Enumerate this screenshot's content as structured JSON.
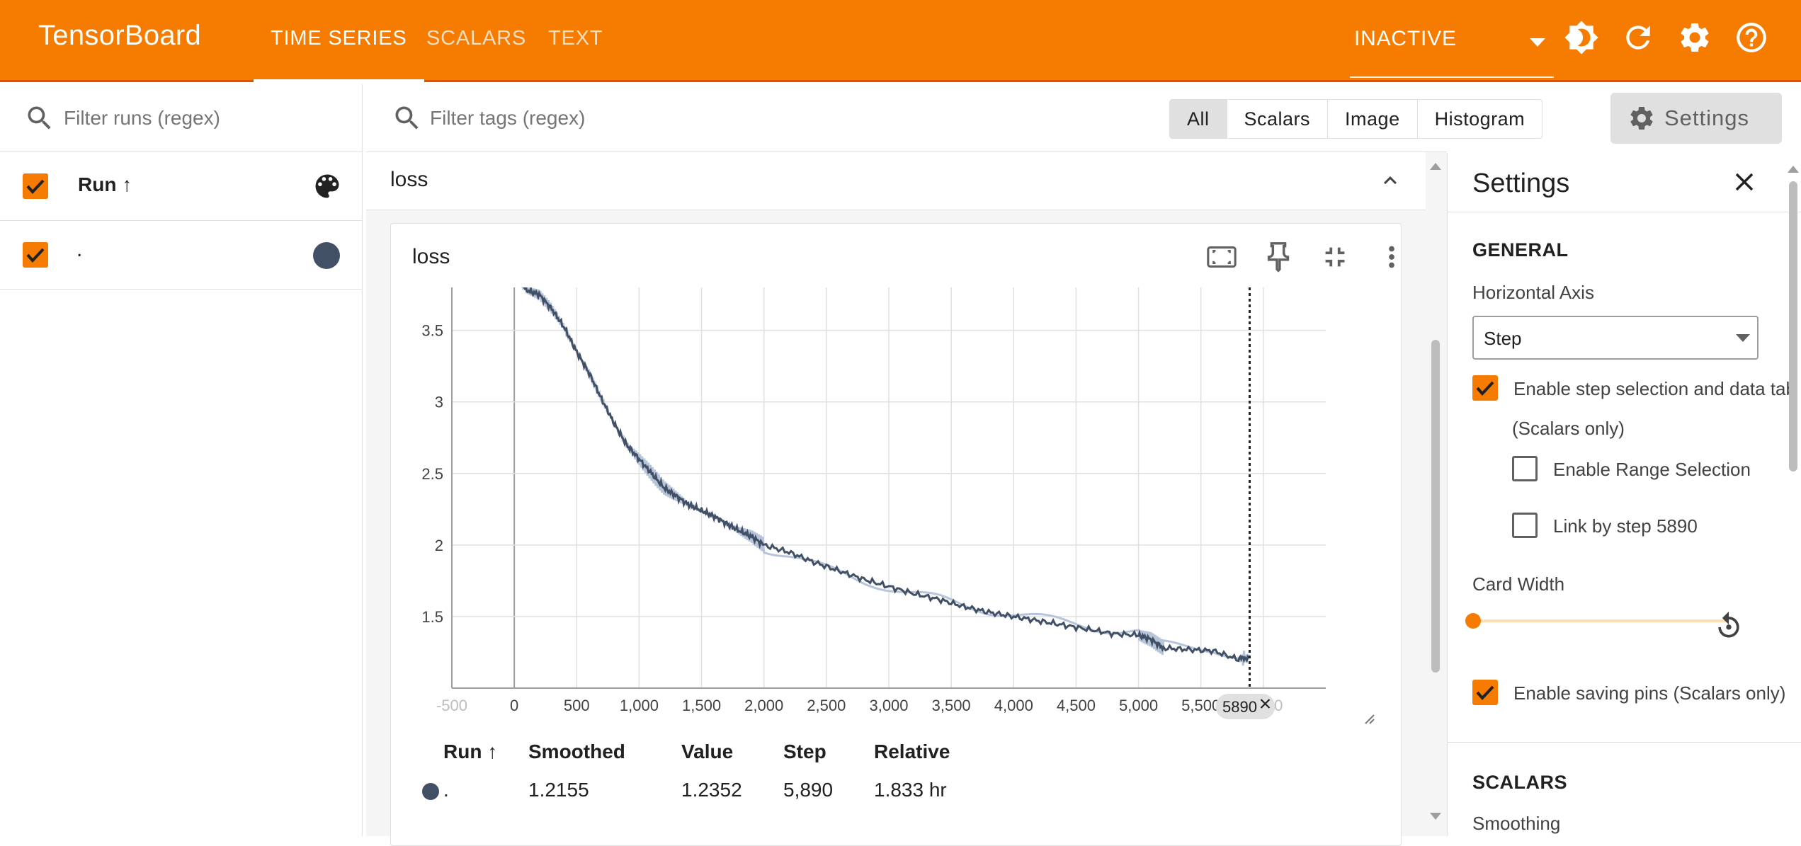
{
  "app": {
    "title": "TensorBoard",
    "accent_color": "#f57c00",
    "tabs": [
      {
        "label": "TIME SERIES",
        "active": true
      },
      {
        "label": "SCALARS",
        "active": false
      },
      {
        "label": "TEXT",
        "active": false
      }
    ],
    "status": "INACTIVE",
    "toolbar_icons": [
      "brightness-icon",
      "refresh-icon",
      "gear-icon",
      "help-icon"
    ]
  },
  "runs_panel": {
    "filter_placeholder": "Filter runs (regex)",
    "header_label": "Run ↑",
    "runs": [
      {
        "name": ".",
        "checked": true,
        "color": "#425066"
      }
    ]
  },
  "main": {
    "filter_placeholder": "Filter tags (regex)",
    "type_filters": [
      {
        "label": "All",
        "selected": true
      },
      {
        "label": "Scalars",
        "selected": false
      },
      {
        "label": "Image",
        "selected": false
      },
      {
        "label": "Histogram",
        "selected": false
      }
    ],
    "settings_button": "Settings",
    "group_title": "loss",
    "card": {
      "title": "loss",
      "step_marker": "5890",
      "table": {
        "headers": [
          "Run ↑",
          "Smoothed",
          "Value",
          "Step",
          "Relative"
        ],
        "row": {
          "run": ".",
          "smoothed": "1.2155",
          "value": "1.2352",
          "step": "5,890",
          "relative": "1.833 hr",
          "color": "#425066"
        }
      }
    }
  },
  "chart_data": {
    "type": "line",
    "title": "loss",
    "xlabel": "",
    "ylabel": "",
    "xlim": [
      -500,
      6500
    ],
    "ylim": [
      1.0,
      3.8
    ],
    "x_ticks": [
      -500,
      0,
      500,
      1000,
      1500,
      2000,
      2500,
      3000,
      3500,
      4000,
      4500,
      5000,
      5500,
      6000
    ],
    "x_tick_labels": [
      "-500",
      "0",
      "500",
      "1,000",
      "1,500",
      "2,000",
      "2,500",
      "3,000",
      "3,500",
      "4,000",
      "4,500",
      "5,000",
      "5,500",
      "6,000"
    ],
    "y_ticks": [
      1.5,
      2,
      2.5,
      3,
      3.5
    ],
    "y_tick_labels": [
      "1.5",
      "2",
      "2.5",
      "3",
      "3.5"
    ],
    "grid": true,
    "series": [
      {
        "color": "#425066",
        "x": [
          0,
          100,
          200,
          300,
          400,
          500,
          600,
          700,
          800,
          900,
          1000,
          1100,
          1200,
          1300,
          1400,
          1500,
          1600,
          1700,
          1800,
          1900,
          2000,
          2200,
          2400,
          2600,
          2800,
          3000,
          3200,
          3400,
          3600,
          3800,
          4000,
          4200,
          4400,
          4600,
          4800,
          5000,
          5100,
          5200,
          5400,
          5600,
          5800,
          5890
        ],
        "y": [
          3.9,
          3.78,
          3.75,
          3.65,
          3.52,
          3.35,
          3.2,
          3.02,
          2.85,
          2.7,
          2.6,
          2.5,
          2.4,
          2.34,
          2.28,
          2.24,
          2.2,
          2.15,
          2.1,
          2.06,
          2.0,
          1.95,
          1.88,
          1.82,
          1.76,
          1.71,
          1.66,
          1.62,
          1.57,
          1.53,
          1.5,
          1.47,
          1.44,
          1.41,
          1.38,
          1.37,
          1.34,
          1.28,
          1.27,
          1.26,
          1.2,
          1.22
        ]
      }
    ],
    "selected_step": 5890
  },
  "settings_panel": {
    "title": "Settings",
    "general_heading": "GENERAL",
    "horizontal_axis_label": "Horizontal Axis",
    "horizontal_axis_value": "Step",
    "enable_step_selection": {
      "label": "Enable step selection and data tab",
      "checked": true
    },
    "scalars_only_note": "(Scalars only)",
    "enable_range_selection": {
      "label": "Enable Range Selection",
      "checked": false
    },
    "link_by_step": {
      "label": "Link by step 5890",
      "checked": false
    },
    "card_width_label": "Card Width",
    "card_width_value": 0,
    "enable_saving_pins": {
      "label": "Enable saving pins (Scalars only)",
      "checked": true
    },
    "scalars_heading": "SCALARS",
    "smoothing_label": "Smoothing"
  }
}
